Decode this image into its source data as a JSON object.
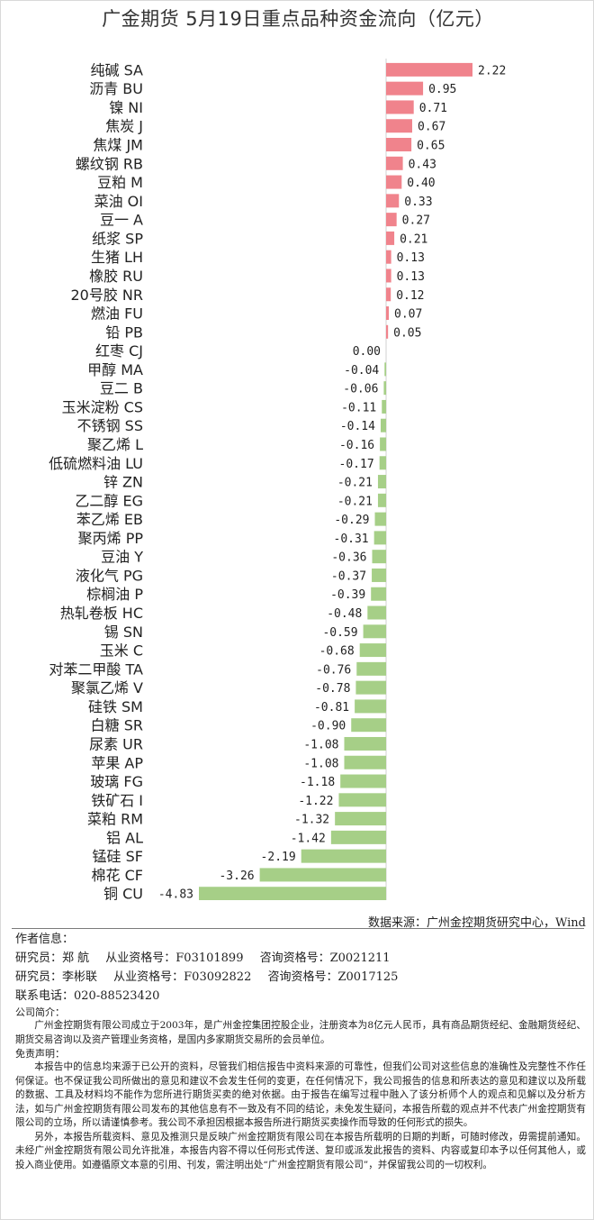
{
  "title": "广金期货 5月19日重点品种资金流向（亿元）",
  "chart_data": {
    "type": "bar",
    "orientation": "horizontal",
    "categories": [
      "纯碱 SA",
      "沥青 BU",
      "镍 NI",
      "焦炭 J",
      "焦煤 JM",
      "螺纹钢 RB",
      "豆粕 M",
      "菜油 OI",
      "豆一 A",
      "纸浆 SP",
      "生猪 LH",
      "橡胶 RU",
      "20号胶 NR",
      "燃油 FU",
      "铅 PB",
      "红枣 CJ",
      "甲醇 MA",
      "豆二 B",
      "玉米淀粉 CS",
      "不锈钢 SS",
      "聚乙烯 L",
      "低硫燃料油 LU",
      "锌 ZN",
      "乙二醇 EG",
      "苯乙烯 EB",
      "聚丙烯 PP",
      "豆油 Y",
      "液化气 PG",
      "棕榈油 P",
      "热轧卷板 HC",
      "锡 SN",
      "玉米 C",
      "对苯二甲酸 TA",
      "聚氯乙烯 V",
      "硅铁 SM",
      "白糖 SR",
      "尿素 UR",
      "苹果 AP",
      "玻璃 FG",
      "铁矿石 I",
      "菜粕 RM",
      "铝 AL",
      "锰硅 SF",
      "棉花 CF",
      "铜 CU"
    ],
    "values": [
      2.22,
      0.95,
      0.71,
      0.67,
      0.65,
      0.43,
      0.4,
      0.33,
      0.27,
      0.21,
      0.13,
      0.13,
      0.12,
      0.07,
      0.05,
      0.0,
      -0.04,
      -0.06,
      -0.11,
      -0.14,
      -0.16,
      -0.17,
      -0.21,
      -0.21,
      -0.29,
      -0.31,
      -0.36,
      -0.37,
      -0.39,
      -0.48,
      -0.59,
      -0.68,
      -0.76,
      -0.78,
      -0.81,
      -0.9,
      -1.08,
      -1.08,
      -1.18,
      -1.22,
      -1.32,
      -1.42,
      -2.19,
      -3.26,
      -4.83
    ],
    "value_labels": [
      "2.22",
      "0.95",
      "0.71",
      "0.67",
      "0.65",
      "0.43",
      "0.40",
      "0.33",
      "0.27",
      "0.21",
      "0.13",
      "0.13",
      "0.12",
      "0.07",
      "0.05",
      "0.00",
      "-0.04",
      "-0.06",
      "-0.11",
      "-0.14",
      "-0.16",
      "-0.17",
      "-0.21",
      "-0.21",
      "-0.29",
      "-0.31",
      "-0.36",
      "-0.37",
      "-0.39",
      "-0.48",
      "-0.59",
      "-0.68",
      "-0.76",
      "-0.78",
      "-0.81",
      "-0.90",
      "-1.08",
      "-1.08",
      "-1.18",
      "-1.22",
      "-1.32",
      "-1.42",
      "-2.19",
      "-3.26",
      "-4.83"
    ],
    "xlim": [
      -4.83,
      2.22
    ],
    "colors": {
      "positive": "#f0838c",
      "negative": "#a6cf87"
    }
  },
  "source": "数据来源：广州金控期货研究中心，Wind",
  "author": {
    "heading": "作者信息：",
    "researchers": [
      {
        "role": "研究员：郑 航",
        "qual_label": "从业资格号：F03101899",
        "consult_label": "咨询资格号：Z0021211"
      },
      {
        "role": "研究员：李彬联",
        "qual_label": "从业资格号：F03092822",
        "consult_label": "咨询资格号：Z0017125"
      }
    ],
    "phone": "联系电话：020-88523420"
  },
  "company": {
    "heading": "公司简介：",
    "text": "广州金控期货有限公司成立于2003年，是广州金控集团控股企业，注册资本为8亿元人民币，具有商品期货经纪、金融期货经纪、期货交易咨询以及资产管理业务资格，是国内多家期货交易所的会员单位。"
  },
  "disclaimer": {
    "heading": "免责声明：",
    "p1": "本报告中的信息均来源于已公开的资料，尽管我们相信报告中资料来源的可靠性，但我们公司对这些信息的准确性及完整性不作任何保证。也不保证我公司所做出的意见和建议不会发生任何的变更，在任何情况下，我公司报告的信息和所表达的意见和建议以及所载的数据、工具及材料均不能作为您所进行期货买卖的绝对依据。由于报告在编写过程中融入了该分析师个人的观点和见解以及分析方法，如与广州金控期货有限公司发布的其他信息有不一致及有不同的结论，未免发生疑问，本报告所载的观点并不代表广州金控期货有限公司的立场，所以请谨慎参考。我公司不承担因根据本报告所进行期货买卖操作而导致的任何形式的损失。",
    "p2": "另外，本报告所载资料、意见及推测只是反映广州金控期货有限公司在本报告所载明的日期的判断，可随时修改，毋需提前通知。未经广州金控期货有限公司允许批准，本报告内容不得以任何形式传送、复印或派发此报告的资料、内容或复印本予以任何其他人，或投入商业使用。如遵循原文本意的引用、刊发，需注明出处“广州金控期货有限公司”，并保留我公司的一切权利。"
  }
}
